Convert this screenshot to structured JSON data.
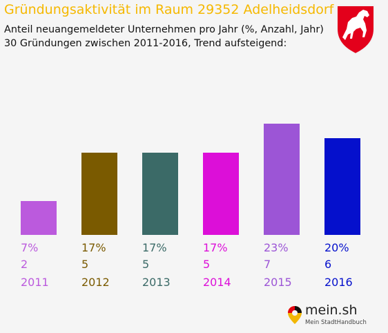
{
  "header": {
    "title": "Gründungsaktivität im Raum 29352 Adelheidsdorf",
    "subtitle_line1": "Anteil neuangemeldeter Unternehmen pro Jahr (%, Anzahl, Jahr)",
    "subtitle_line2": "30 Gründungen zwischen 2011-2016, Trend aufsteigend:"
  },
  "crest": {
    "icon": "white-horse-crest-icon",
    "color": "#e3001b"
  },
  "chart_data": {
    "type": "bar",
    "categories": [
      "2011",
      "2012",
      "2013",
      "2014",
      "2015",
      "2016"
    ],
    "percent_labels": [
      "7%",
      "17%",
      "17%",
      "17%",
      "23%",
      "20%"
    ],
    "values": [
      7,
      17,
      17,
      17,
      23,
      20
    ],
    "counts": [
      2,
      5,
      5,
      5,
      7,
      6
    ],
    "colors": [
      "#bb5add",
      "#7a5a00",
      "#3b6a67",
      "#dc0fd8",
      "#9c55d6",
      "#0510cc"
    ],
    "ylim": [
      0,
      23
    ],
    "grid": false,
    "title": "Gründungsaktivität im Raum 29352 Adelheidsdorf",
    "subtitle": "Anteil neuangemeldeter Unternehmen pro Jahr (%, Anzahl, Jahr)",
    "xlabel": "",
    "ylabel": ""
  },
  "logo": {
    "name": "mein.sh",
    "tagline": "Mein StadtHandbuch",
    "icon": "map-pin-icon"
  }
}
